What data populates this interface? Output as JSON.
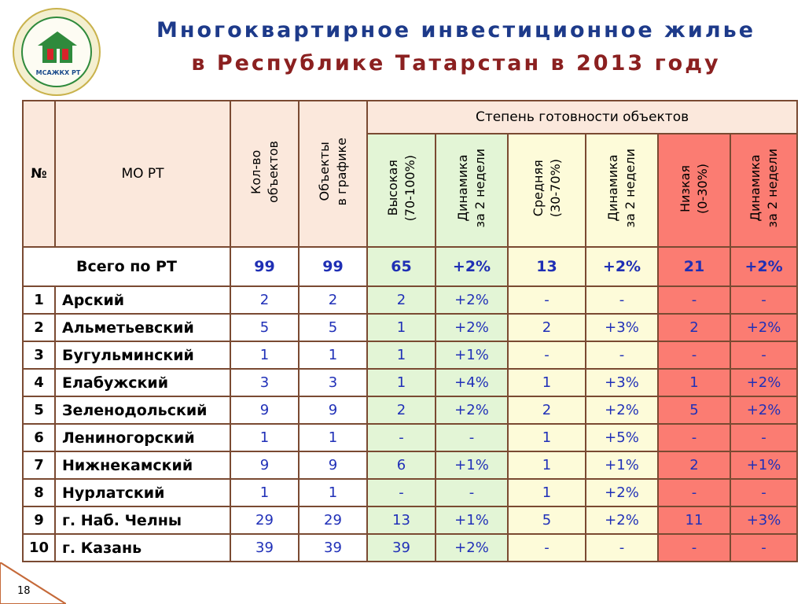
{
  "logo": {
    "text": "МСАЖКХ РТ"
  },
  "title": {
    "line1": "Многоквартирное инвестиционное жилье",
    "line2": "в Республике Татарстан в 2013 году"
  },
  "table": {
    "headers": {
      "num": "№",
      "mo": "МО РТ",
      "count": "Кол-во\nобъектов",
      "schedule": "Объекты\nв графике",
      "readiness": "Степень готовности объектов",
      "high": "Высокая\n(70-100%)",
      "dyn1": "Динамика\nза 2 недели",
      "mid": "Средняя\n(30-70%)",
      "dyn2": "Динамика\nза 2 недели",
      "low": "Низкая\n(0-30%)",
      "dyn3": "Динамика\nза 2 недели"
    },
    "total": {
      "label": "Всего по РТ",
      "values": [
        "99",
        "99",
        "65",
        "+2%",
        "13",
        "+2%",
        "21",
        "+2%"
      ]
    },
    "rows": [
      {
        "num": "1",
        "name": "Арский",
        "values": [
          "2",
          "2",
          "2",
          "+2%",
          "-",
          "-",
          "-",
          "-"
        ]
      },
      {
        "num": "2",
        "name": "Альметьевский",
        "values": [
          "5",
          "5",
          "1",
          "+2%",
          "2",
          "+3%",
          "2",
          "+2%"
        ]
      },
      {
        "num": "3",
        "name": "Бугульминский",
        "values": [
          "1",
          "1",
          "1",
          "+1%",
          "-",
          "-",
          "-",
          "-"
        ]
      },
      {
        "num": "4",
        "name": "Елабужский",
        "values": [
          "3",
          "3",
          "1",
          "+4%",
          "1",
          "+3%",
          "1",
          "+2%"
        ]
      },
      {
        "num": "5",
        "name": "Зеленодольский",
        "values": [
          "9",
          "9",
          "2",
          "+2%",
          "2",
          "+2%",
          "5",
          "+2%"
        ]
      },
      {
        "num": "6",
        "name": "Лениногорский",
        "values": [
          "1",
          "1",
          "-",
          "-",
          "1",
          "+5%",
          "-",
          "-"
        ]
      },
      {
        "num": "7",
        "name": "Нижнекамский",
        "values": [
          "9",
          "9",
          "6",
          "+1%",
          "1",
          "+1%",
          "2",
          "+1%"
        ]
      },
      {
        "num": "8",
        "name": "Нурлатский",
        "values": [
          "1",
          "1",
          "-",
          "-",
          "1",
          "+2%",
          "-",
          "-"
        ]
      },
      {
        "num": "9",
        "name": "г. Наб. Челны",
        "values": [
          "29",
          "29",
          "13",
          "+1%",
          "5",
          "+2%",
          "11",
          "+3%"
        ]
      },
      {
        "num": "10",
        "name": "г. Казань",
        "values": [
          "39",
          "39",
          "39",
          "+2%",
          "-",
          "-",
          "-",
          "-"
        ]
      }
    ]
  },
  "page_number": "18",
  "colors": {
    "high": "#e3f5d6",
    "mid": "#fdfbd9",
    "low": "#fb7c72",
    "header": "#fbe8dc"
  }
}
